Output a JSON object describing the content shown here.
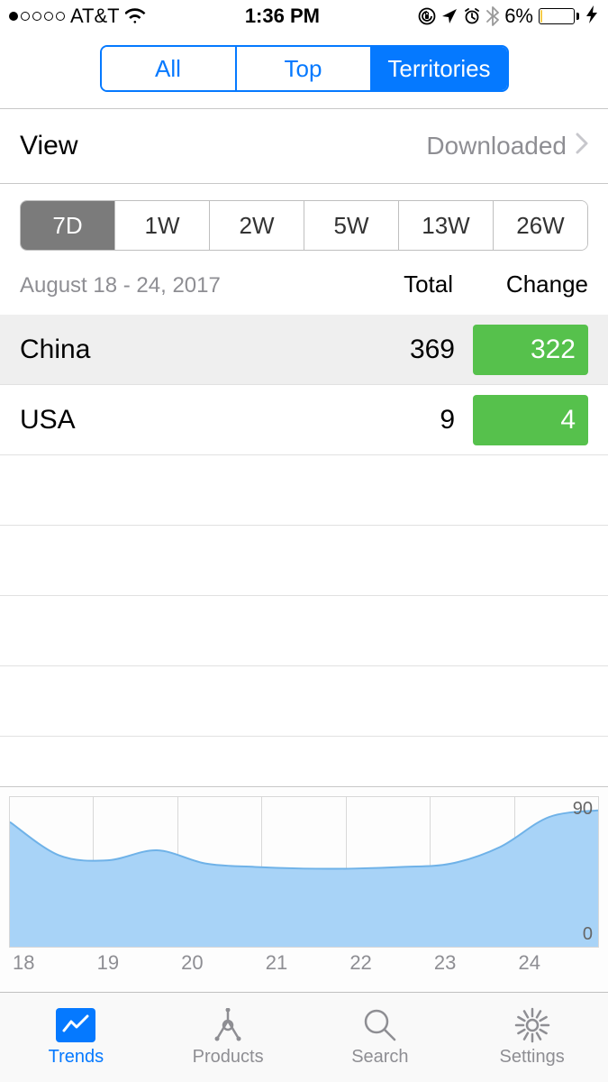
{
  "status_bar": {
    "carrier": "AT&T",
    "signal_filled": 1,
    "signal_total": 5,
    "time": "1:36 PM",
    "battery_pct_label": "6%",
    "battery_fill_pct": 6,
    "battery_fill_color": "#f7c948",
    "charging": true
  },
  "top_segments": {
    "items": [
      "All",
      "Top",
      "Territories"
    ],
    "selected_index": 2,
    "accent": "#0579ff"
  },
  "view_row": {
    "label": "View",
    "value": "Downloaded"
  },
  "period_segments": {
    "items": [
      "7D",
      "1W",
      "2W",
      "5W",
      "13W",
      "26W"
    ],
    "selected_index": 0,
    "selected_bg": "#7b7b7b",
    "border": "#bfbfbf"
  },
  "table": {
    "date_range": "August 18 - 24, 2017",
    "col_total": "Total",
    "col_change": "Change",
    "badge_color": "#56c14c",
    "rows": [
      {
        "name": "China",
        "total": "369",
        "change": "322",
        "shaded": true
      },
      {
        "name": "USA",
        "total": "9",
        "change": "4",
        "shaded": false
      }
    ],
    "empty_row_count": 5
  },
  "chart": {
    "type": "area",
    "x_labels": [
      "18",
      "19",
      "20",
      "21",
      "22",
      "23",
      "24"
    ],
    "y_top_label": "90",
    "y_bottom_label": "0",
    "ylim": [
      0,
      90
    ],
    "values": [
      75,
      55,
      52,
      58,
      50,
      48,
      47,
      47,
      48,
      50,
      60,
      78,
      82
    ],
    "fill_color": "#a8d3f7",
    "stroke_color": "#6fb2e8",
    "grid_color": "#d8d8d8",
    "background": "#fdfdfd"
  },
  "tabbar": {
    "items": [
      {
        "label": "Trends",
        "icon": "trends-icon"
      },
      {
        "label": "Products",
        "icon": "products-icon"
      },
      {
        "label": "Search",
        "icon": "search-icon"
      },
      {
        "label": "Settings",
        "icon": "settings-icon"
      }
    ],
    "selected_index": 0,
    "accent": "#0579ff",
    "inactive": "#8e8e93"
  }
}
